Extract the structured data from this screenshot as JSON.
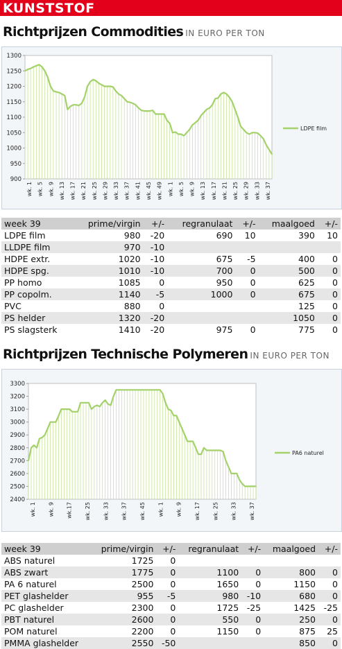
{
  "header": {
    "section": "KUNSTSTOF"
  },
  "commodities": {
    "title": "Richtprijzen Commodities",
    "unit": "IN EURO PER TON",
    "chart": {
      "type": "line",
      "series_name": "LDPE film",
      "ylim": [
        900,
        1300
      ],
      "yticks": [
        900,
        950,
        1000,
        1050,
        1100,
        1150,
        1200,
        1250,
        1300
      ],
      "xticks": [
        "wk. 1",
        "wk. 5",
        "wk. 9",
        "wk. 13",
        "wk. 17",
        "wk. 21",
        "wk. 25",
        "wk. 29",
        "wk. 33",
        "wk. 37",
        "wk. 41",
        "wk. 45",
        "wk. 49",
        "wk. 1",
        "wk. 5",
        "wk. 9",
        "wk. 13",
        "wk. 17",
        "wk. 21",
        "wk. 25",
        "wk. 29",
        "wk. 33",
        "wk. 37"
      ],
      "values": [
        1250,
        1255,
        1258,
        1263,
        1267,
        1270,
        1263,
        1250,
        1230,
        1200,
        1185,
        1182,
        1180,
        1175,
        1170,
        1125,
        1135,
        1140,
        1140,
        1138,
        1145,
        1165,
        1200,
        1215,
        1222,
        1218,
        1210,
        1205,
        1200,
        1200,
        1200,
        1198,
        1185,
        1175,
        1170,
        1160,
        1150,
        1148,
        1145,
        1140,
        1130,
        1122,
        1120,
        1120,
        1120,
        1122,
        1110,
        1110,
        1110,
        1110,
        1090,
        1080,
        1050,
        1052,
        1045,
        1045,
        1040,
        1050,
        1060,
        1075,
        1082,
        1090,
        1105,
        1115,
        1125,
        1130,
        1140,
        1160,
        1162,
        1175,
        1180,
        1175,
        1165,
        1150,
        1125,
        1100,
        1070,
        1060,
        1050,
        1045,
        1050,
        1050,
        1048,
        1040,
        1030,
        1010,
        995,
        980
      ]
    },
    "table": {
      "headers": [
        "week 39",
        "prime/virgin",
        "+/-",
        "regranulaat",
        "+/-",
        "maalgoed",
        "+/-"
      ],
      "rows": [
        [
          "LDPE film",
          "980",
          "-20",
          "690",
          "10",
          "390",
          "10"
        ],
        [
          "LLDPE film",
          "970",
          "-10",
          "",
          "",
          "",
          ""
        ],
        [
          "HDPE extr.",
          "1020",
          "-10",
          "675",
          "-5",
          "400",
          "0"
        ],
        [
          "HDPE spg.",
          "1010",
          "-10",
          "700",
          "0",
          "500",
          "0"
        ],
        [
          "PP homo",
          "1085",
          "0",
          "950",
          "0",
          "625",
          "0"
        ],
        [
          "PP copolm.",
          "1140",
          "-5",
          "1000",
          "0",
          "675",
          "0"
        ],
        [
          "PVC",
          "880",
          "0",
          "",
          "",
          "125",
          "0"
        ],
        [
          "PS helder",
          "1320",
          "-20",
          "",
          "",
          "1050",
          "0"
        ],
        [
          "PS slagsterk",
          "1410",
          "-20",
          "975",
          "0",
          "775",
          "0"
        ]
      ]
    }
  },
  "technical": {
    "title": "Richtprijzen Technische Polymeren",
    "unit": "IN EURO PER TON",
    "chart": {
      "type": "line",
      "series_name": "PA6 naturel",
      "ylim": [
        2400,
        3300
      ],
      "yticks": [
        2400,
        2500,
        2600,
        2700,
        2800,
        2900,
        3000,
        3100,
        3200,
        3300
      ],
      "xticks": [
        "wk. 1",
        "wk. 9",
        "wk.17",
        "wk. 25",
        "wk. 33",
        "wk. 37",
        "wk. 45",
        "wk. 1",
        "wk. 9",
        "wk. 17",
        "wk. 25",
        "wk. 33",
        "wk. 37"
      ],
      "values": [
        2700,
        2800,
        2820,
        2800,
        2870,
        2880,
        2900,
        2950,
        3000,
        3000,
        3000,
        3050,
        3100,
        3100,
        3100,
        3100,
        3080,
        3080,
        3080,
        3150,
        3150,
        3150,
        3150,
        3100,
        3120,
        3130,
        3120,
        3150,
        3170,
        3140,
        3130,
        3200,
        3250,
        3250,
        3250,
        3250,
        3250,
        3250,
        3250,
        3250,
        3250,
        3250,
        3250,
        3250,
        3250,
        3250,
        3250,
        3250,
        3250,
        3220,
        3150,
        3100,
        3090,
        3050,
        3050,
        3000,
        2950,
        2900,
        2850,
        2850,
        2850,
        2800,
        2750,
        2750,
        2800,
        2780,
        2780,
        2780,
        2780,
        2780,
        2780,
        2770,
        2700,
        2650,
        2600,
        2600,
        2600,
        2550,
        2520,
        2500,
        2500,
        2500,
        2500,
        2500
      ]
    },
    "table": {
      "headers": [
        "week 39",
        "prime/virgin",
        "+/-",
        "regranulaat",
        "+/-",
        "maalgoed",
        "+/-"
      ],
      "rows": [
        [
          "ABS naturel",
          "1725",
          "0",
          "",
          "",
          "",
          ""
        ],
        [
          "ABS zwart",
          "1775",
          "0",
          "1100",
          "0",
          "800",
          "0"
        ],
        [
          "PA 6 naturel",
          "2500",
          "0",
          "1650",
          "0",
          "1150",
          "0"
        ],
        [
          "PET glashelder",
          "955",
          "-5",
          "980",
          "-10",
          "680",
          "0"
        ],
        [
          "PC glashelder",
          "2300",
          "0",
          "1725",
          "-25",
          "1425",
          "-25"
        ],
        [
          "PBT naturel",
          "2600",
          "0",
          "550",
          "0",
          "250",
          "0"
        ],
        [
          "POM naturel",
          "2200",
          "0",
          "1150",
          "0",
          "875",
          "25"
        ],
        [
          "PMMA glashelder",
          "2550",
          "-50",
          "",
          "",
          "850",
          "0"
        ]
      ]
    }
  },
  "colors": {
    "banner": "#e3001b",
    "line": "#a3d16a",
    "area": "#c8e39c",
    "header_row": "#cfcfcf",
    "alt_row": "#e6e6e6"
  }
}
